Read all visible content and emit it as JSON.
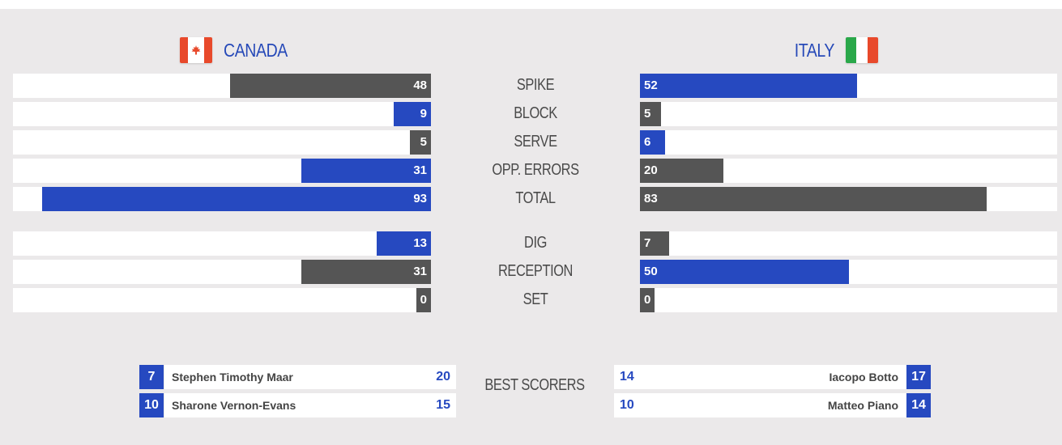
{
  "teams": {
    "left": {
      "name": "CANADA",
      "flag_icon": "canada-flag-icon"
    },
    "right": {
      "name": "ITALY",
      "flag_icon": "italy-flag-icon"
    }
  },
  "colors": {
    "accent_blue": "#2649c0",
    "gray": "#555555",
    "background": "#ebe9ea"
  },
  "stats": [
    {
      "label": "SPIKE",
      "left": 48,
      "right": 52,
      "left_color": "gray",
      "right_color": "blue"
    },
    {
      "label": "BLOCK",
      "left": 9,
      "right": 5,
      "left_color": "blue",
      "right_color": "gray"
    },
    {
      "label": "SERVE",
      "left": 5,
      "right": 6,
      "left_color": "gray",
      "right_color": "blue"
    },
    {
      "label": "OPP. ERRORS",
      "left": 31,
      "right": 20,
      "left_color": "blue",
      "right_color": "gray"
    },
    {
      "label": "TOTAL",
      "left": 93,
      "right": 83,
      "left_color": "blue",
      "right_color": "gray"
    },
    {
      "label": "DIG",
      "left": 13,
      "right": 7,
      "left_color": "blue",
      "right_color": "gray"
    },
    {
      "label": "RECEPTION",
      "left": 31,
      "right": 50,
      "left_color": "gray",
      "right_color": "blue"
    },
    {
      "label": "SET",
      "left": 0,
      "right": 0,
      "left_color": "gray",
      "right_color": "gray"
    }
  ],
  "stats_scale_max": 100,
  "best_scorers": {
    "label": "BEST SCORERS",
    "left": [
      {
        "number": "7",
        "name": "Stephen Timothy Maar",
        "points": "20"
      },
      {
        "number": "10",
        "name": "Sharone Vernon-Evans",
        "points": "15"
      }
    ],
    "right": [
      {
        "number": "17",
        "name": "Iacopo Botto",
        "points": "14"
      },
      {
        "number": "14",
        "name": "Matteo Piano",
        "points": "10"
      }
    ]
  }
}
